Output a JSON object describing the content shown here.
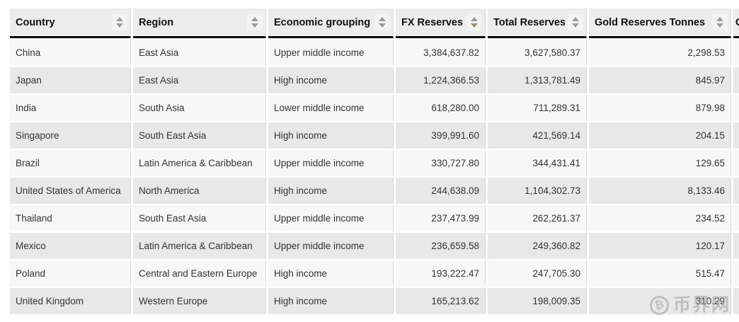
{
  "table": {
    "columns": [
      {
        "label": "Country",
        "slug": "country",
        "type": "text",
        "sort": "none"
      },
      {
        "label": "Region",
        "slug": "region",
        "type": "text",
        "sort": "none"
      },
      {
        "label": "Economic grouping",
        "slug": "economic-grouping",
        "type": "text",
        "sort": "none"
      },
      {
        "label": "FX Reserves",
        "slug": "fx-reserves",
        "type": "number",
        "sort": "desc"
      },
      {
        "label": "Total Reserves",
        "slug": "total-reserves",
        "type": "number",
        "sort": "none"
      },
      {
        "label": "Gold Reserves Tonnes",
        "slug": "gold-reserves-tonnes",
        "type": "number",
        "sort": "none"
      },
      {
        "label": "G",
        "slug": "next-column-truncated",
        "type": "text",
        "sort": "none",
        "truncated": true
      }
    ],
    "rows": [
      [
        "China",
        "East Asia",
        "Upper middle income",
        "3,384,637.82",
        "3,627,580.37",
        "2,298.53"
      ],
      [
        "Japan",
        "East Asia",
        "High income",
        "1,224,366.53",
        "1,313,781.49",
        "845.97"
      ],
      [
        "India",
        "South Asia",
        "Lower middle income",
        "618,280.00",
        "711,289.31",
        "879.98"
      ],
      [
        "Singapore",
        "South East Asia",
        "High income",
        "399,991.60",
        "421,569.14",
        "204.15"
      ],
      [
        "Brazil",
        "Latin America & Caribbean",
        "Upper middle income",
        "330,727.80",
        "344,431.41",
        "129.65"
      ],
      [
        "United States of America",
        "North America",
        "High income",
        "244,638.09",
        "1,104,302.73",
        "8,133.46"
      ],
      [
        "Thailand",
        "South East Asia",
        "Upper middle income",
        "237,473.99",
        "262,261.37",
        "234.52"
      ],
      [
        "Mexico",
        "Latin America & Caribbean",
        "Upper middle income",
        "236,659.58",
        "249,360.82",
        "120.17"
      ],
      [
        "Poland",
        "Central and Eastern Europe",
        "High income",
        "193,222.47",
        "247,705.30",
        "515.47"
      ],
      [
        "United Kingdom",
        "Western Europe",
        "High income",
        "165,213.62",
        "198,009.35",
        "310.29"
      ]
    ]
  },
  "watermark": {
    "symbol": "₿",
    "text": "币界网"
  },
  "colors": {
    "header_bg": "#ececec",
    "header_border": "#0a0a0a",
    "row_odd_bg": "#f7f7f7",
    "row_even_bg": "#e8e8e8",
    "cell_border": "#d6d6d6",
    "sort_inactive": "#9b9b9b",
    "sort_active": "#a3915f",
    "body_text": "#333333",
    "header_text": "#111111"
  }
}
